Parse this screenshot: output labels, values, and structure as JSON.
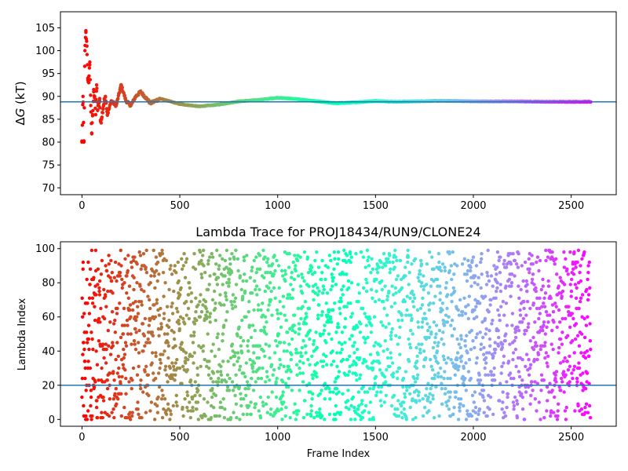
{
  "chart_data": [
    {
      "type": "scatter",
      "title": "",
      "xlabel": "",
      "ylabel": "ΔG (kT)",
      "xlim": [
        -110,
        2730
      ],
      "ylim": [
        68.5,
        108.5
      ],
      "xticks": [
        0,
        500,
        1000,
        1500,
        2000,
        2500
      ],
      "yticks": [
        70,
        75,
        80,
        85,
        90,
        95,
        100,
        105
      ],
      "reference_line": 88.8,
      "reference_color": "#1f77b4",
      "colormap": "rainbow",
      "grid": false,
      "legend": "none",
      "n_frames": 2600,
      "series": [
        {
          "points_sample": [
            [
              0,
              80
            ],
            [
              5,
              90
            ],
            [
              10,
              80
            ],
            [
              15,
              100
            ],
            [
              20,
              104
            ],
            [
              25,
              101
            ],
            [
              30,
              94
            ],
            [
              35,
              93
            ],
            [
              40,
              97.5
            ],
            [
              45,
              88
            ],
            [
              50,
              82
            ],
            [
              55,
              86
            ],
            [
              60,
              91
            ],
            [
              65,
              90
            ],
            [
              70,
              86
            ],
            [
              75,
              92.5
            ],
            [
              80,
              87
            ],
            [
              90,
              89
            ],
            [
              95,
              84.5
            ],
            [
              100,
              85
            ],
            [
              110,
              88
            ],
            [
              120,
              90
            ],
            [
              130,
              86
            ],
            [
              150,
              89
            ],
            [
              175,
              88
            ],
            [
              200,
              92.5
            ],
            [
              225,
              89
            ],
            [
              250,
              88
            ],
            [
              275,
              90
            ],
            [
              300,
              91
            ],
            [
              350,
              88.5
            ],
            [
              400,
              89.5
            ],
            [
              500,
              88.3
            ],
            [
              600,
              87.8
            ],
            [
              700,
              88.2
            ],
            [
              800,
              88.9
            ],
            [
              900,
              89.2
            ],
            [
              1000,
              89.7
            ],
            [
              1100,
              89.4
            ],
            [
              1200,
              88.9
            ],
            [
              1300,
              88.5
            ],
            [
              1400,
              88.7
            ],
            [
              1500,
              89.0
            ],
            [
              1600,
              88.8
            ],
            [
              1700,
              88.9
            ],
            [
              1800,
              89.0
            ],
            [
              1900,
              89.0
            ],
            [
              2000,
              88.9
            ],
            [
              2200,
              88.9
            ],
            [
              2400,
              88.8
            ],
            [
              2600,
              88.8
            ]
          ]
        }
      ]
    },
    {
      "type": "scatter",
      "title": "Lambda Trace for PROJ18434/RUN9/CLONE24",
      "xlabel": "Frame Index",
      "ylabel": "Lambda Index",
      "xlim": [
        -110,
        2730
      ],
      "ylim": [
        -4,
        104
      ],
      "xticks": [
        0,
        500,
        1000,
        1500,
        2000,
        2500
      ],
      "yticks": [
        0,
        20,
        40,
        60,
        80,
        100
      ],
      "reference_line": 20,
      "reference_color": "#1f77b4",
      "colormap": "rainbow",
      "grid": false,
      "legend": "none",
      "n_frames": 2600,
      "lambda_range": [
        0,
        99
      ]
    }
  ]
}
